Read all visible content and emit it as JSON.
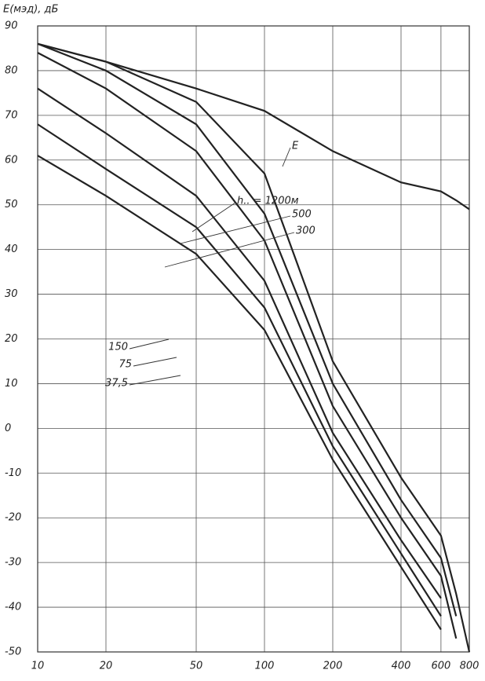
{
  "chart_data": {
    "type": "line",
    "y_label": "E(мэд), дБ",
    "x": [
      10,
      20,
      50,
      100,
      200,
      400,
      600,
      700,
      800
    ],
    "xlim": [
      10,
      800
    ],
    "xticks": [
      10,
      20,
      50,
      100,
      200,
      400,
      600,
      800
    ],
    "xscale": "log",
    "ylim": [
      -50,
      90
    ],
    "yticks": [
      -50,
      -40,
      -30,
      -20,
      -10,
      0,
      10,
      20,
      30,
      40,
      50,
      60,
      70,
      80,
      90
    ],
    "grid": true,
    "color": "#222222",
    "series": [
      {
        "name": "E",
        "values": [
          86,
          82,
          76,
          71,
          62,
          55,
          53,
          51,
          49
        ]
      },
      {
        "name": "h.. = 1200м",
        "values": [
          86,
          82,
          73,
          57,
          15,
          -11,
          -24,
          -37,
          -50
        ]
      },
      {
        "name": "500",
        "values": [
          86,
          80,
          68,
          48,
          10,
          -16,
          -29,
          -42,
          null
        ]
      },
      {
        "name": "300",
        "values": [
          84,
          76,
          62,
          42,
          5,
          -20,
          -33,
          -47,
          null
        ]
      },
      {
        "name": "150",
        "values": [
          76,
          66,
          52,
          33,
          -1,
          -25,
          -38,
          null,
          null
        ]
      },
      {
        "name": "75",
        "values": [
          68,
          58,
          45,
          27,
          -4,
          -28,
          -42,
          null,
          null
        ]
      },
      {
        "name": "37,5",
        "values": [
          61,
          52,
          39,
          22,
          -7,
          -31,
          -45,
          null,
          null
        ]
      }
    ]
  }
}
